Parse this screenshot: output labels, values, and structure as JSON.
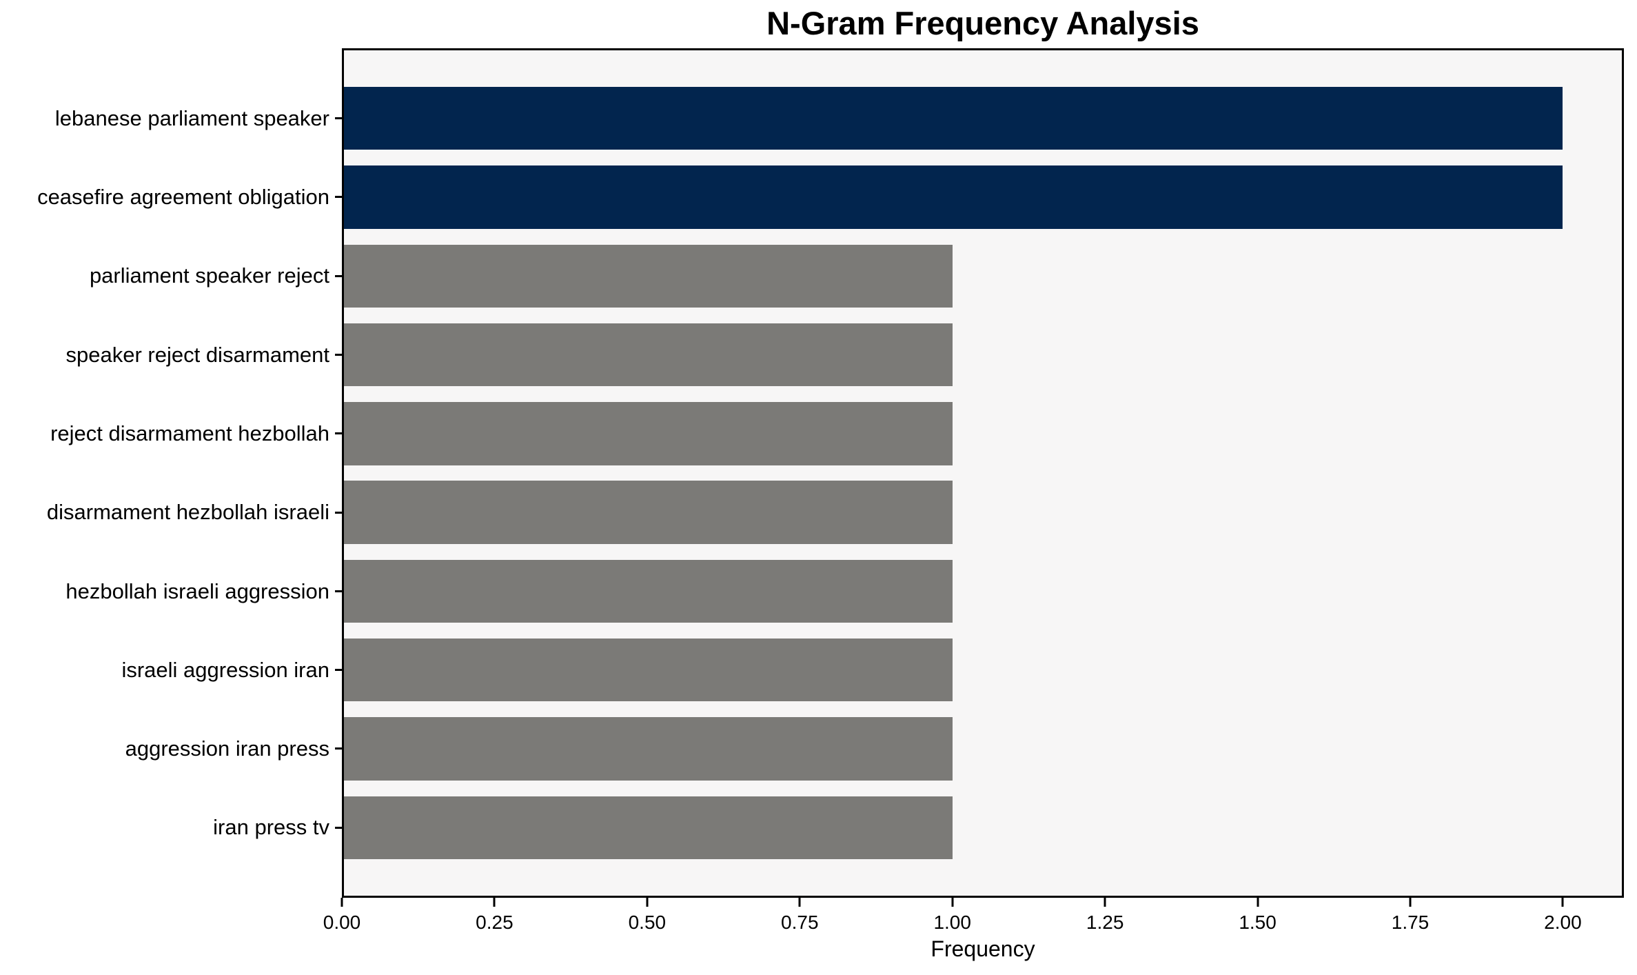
{
  "chart_data": {
    "type": "bar",
    "orientation": "horizontal",
    "title": "N-Gram Frequency Analysis",
    "xlabel": "Frequency",
    "ylabel": "",
    "categories": [
      "lebanese parliament speaker",
      "ceasefire agreement obligation",
      "parliament speaker reject",
      "speaker reject disarmament",
      "reject disarmament hezbollah",
      "disarmament hezbollah israeli",
      "hezbollah israeli aggression",
      "israeli aggression iran",
      "aggression iran press",
      "iran press tv"
    ],
    "values": [
      2,
      2,
      1,
      1,
      1,
      1,
      1,
      1,
      1,
      1
    ],
    "bar_colors": [
      "#02254e",
      "#02254e",
      "#7b7a77",
      "#7b7a77",
      "#7b7a77",
      "#7b7a77",
      "#7b7a77",
      "#7b7a77",
      "#7b7a77",
      "#7b7a77"
    ],
    "xlim": [
      0,
      2.1
    ],
    "xtick_values": [
      0,
      0.25,
      0.5,
      0.75,
      1.0,
      1.25,
      1.5,
      1.75,
      2.0
    ],
    "xtick_labels": [
      "0.00",
      "0.25",
      "0.50",
      "0.75",
      "1.00",
      "1.25",
      "1.50",
      "1.75",
      "2.00"
    ],
    "grid": false,
    "legend": null,
    "colors": {
      "highlight_bar": "#02254e",
      "default_bar": "#7b7a77",
      "plot_background": "#f7f6f6",
      "figure_background": "#ffffff",
      "spine": "#000000",
      "text": "#000000"
    }
  }
}
